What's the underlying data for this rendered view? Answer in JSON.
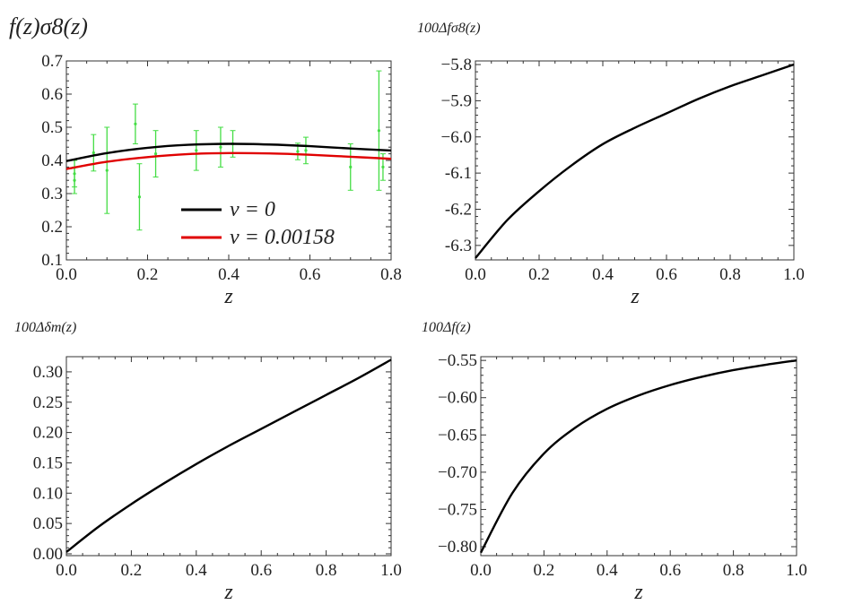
{
  "figure": {
    "background": "#ffffff",
    "axis_color": "#333333"
  },
  "chart_data": [
    {
      "id": "p1",
      "type": "line",
      "ylabel": "f(z)σ8(z)",
      "xlabel": "z",
      "xlim": [
        0,
        0.8
      ],
      "ylim": [
        0.1,
        0.7
      ],
      "xticks": [
        "0.0",
        "0.2",
        "0.4",
        "0.6",
        "0.8"
      ],
      "yticks": [
        "0.1",
        "0.2",
        "0.3",
        "0.4",
        "0.5",
        "0.6",
        "0.7"
      ],
      "legend_position": "lower-left-center",
      "series": [
        {
          "name": "ν = 0",
          "color": "#000000",
          "x": [
            0,
            0.1,
            0.2,
            0.3,
            0.4,
            0.5,
            0.6,
            0.7,
            0.8
          ],
          "y": [
            0.398,
            0.422,
            0.438,
            0.447,
            0.45,
            0.448,
            0.443,
            0.436,
            0.43
          ]
        },
        {
          "name": "ν = 0.00158",
          "color": "#e00000",
          "x": [
            0,
            0.1,
            0.2,
            0.3,
            0.4,
            0.5,
            0.6,
            0.7,
            0.8
          ],
          "y": [
            0.374,
            0.396,
            0.41,
            0.419,
            0.422,
            0.421,
            0.417,
            0.411,
            0.405
          ]
        }
      ],
      "errorbars": {
        "color": "#44dd44",
        "points": [
          {
            "x": 0.02,
            "y": 0.36,
            "err": 0.04
          },
          {
            "x": 0.02,
            "y": 0.34,
            "err": 0.04
          },
          {
            "x": 0.067,
            "y": 0.423,
            "err": 0.055
          },
          {
            "x": 0.1,
            "y": 0.37,
            "err": 0.13
          },
          {
            "x": 0.17,
            "y": 0.51,
            "err": 0.06
          },
          {
            "x": 0.18,
            "y": 0.29,
            "err": 0.1
          },
          {
            "x": 0.22,
            "y": 0.42,
            "err": 0.07
          },
          {
            "x": 0.32,
            "y": 0.43,
            "err": 0.06
          },
          {
            "x": 0.38,
            "y": 0.44,
            "err": 0.06
          },
          {
            "x": 0.41,
            "y": 0.45,
            "err": 0.04
          },
          {
            "x": 0.57,
            "y": 0.427,
            "err": 0.025
          },
          {
            "x": 0.59,
            "y": 0.43,
            "err": 0.04
          },
          {
            "x": 0.7,
            "y": 0.38,
            "err": 0.07
          },
          {
            "x": 0.77,
            "y": 0.49,
            "err": 0.18
          },
          {
            "x": 0.78,
            "y": 0.38,
            "err": 0.04
          }
        ]
      }
    },
    {
      "id": "p2",
      "type": "line",
      "ylabel": "100Δfσ8(z)",
      "xlabel": "z",
      "xlim": [
        0,
        1
      ],
      "ylim": [
        -6.34,
        -5.79
      ],
      "xticks": [
        "0.0",
        "0.2",
        "0.4",
        "0.6",
        "0.8",
        "1.0"
      ],
      "yticks": [
        "−5.8",
        "−5.9",
        "−6.0",
        "-6.1",
        "-6.2",
        "-6.3"
      ],
      "series": [
        {
          "name": "curve",
          "color": "#000000",
          "x": [
            0,
            0.1,
            0.2,
            0.3,
            0.4,
            0.5,
            0.6,
            0.7,
            0.8,
            0.9,
            1.0
          ],
          "y": [
            -6.335,
            -6.23,
            -6.15,
            -6.08,
            -6.02,
            -5.975,
            -5.935,
            -5.895,
            -5.86,
            -5.83,
            -5.8
          ]
        }
      ]
    },
    {
      "id": "p3",
      "type": "line",
      "ylabel": "100Δδm(z)",
      "xlabel": "z",
      "xlim": [
        0,
        1
      ],
      "ylim": [
        -0.003,
        0.325
      ],
      "xticks": [
        "0.0",
        "0.2",
        "0.4",
        "0.6",
        "0.8",
        "1.0"
      ],
      "yticks": [
        "0.00",
        "0.05",
        "0.10",
        "0.15",
        "0.20",
        "0.25",
        "0.30"
      ],
      "series": [
        {
          "name": "curve",
          "color": "#000000",
          "x": [
            0,
            0.1,
            0.2,
            0.3,
            0.4,
            0.5,
            0.6,
            0.7,
            0.8,
            0.9,
            1.0
          ],
          "y": [
            0.003,
            0.045,
            0.082,
            0.116,
            0.148,
            0.178,
            0.206,
            0.234,
            0.262,
            0.29,
            0.32
          ]
        }
      ]
    },
    {
      "id": "p4",
      "type": "line",
      "ylabel": "100Δf(z)",
      "xlabel": "z",
      "xlim": [
        0,
        1
      ],
      "ylim": [
        -0.812,
        -0.545
      ],
      "xticks": [
        "0.0",
        "0.2",
        "0.4",
        "0.6",
        "0.8",
        "1.0"
      ],
      "yticks": [
        "−0.55",
        "−0.60",
        "−0.65",
        "−0.70",
        "−0.75",
        "−0.80"
      ],
      "series": [
        {
          "name": "curve",
          "color": "#000000",
          "x": [
            0,
            0.1,
            0.2,
            0.3,
            0.4,
            0.5,
            0.6,
            0.7,
            0.8,
            0.9,
            1.0
          ],
          "y": [
            -0.808,
            -0.728,
            -0.675,
            -0.64,
            -0.615,
            -0.597,
            -0.583,
            -0.572,
            -0.563,
            -0.556,
            -0.55
          ]
        }
      ]
    }
  ]
}
